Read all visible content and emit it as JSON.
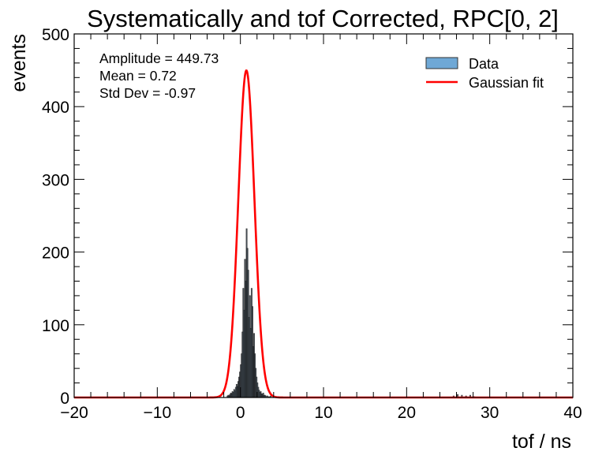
{
  "chart_data": {
    "type": "bar",
    "title": "Systematically and tof Corrected, RPC[0, 2]",
    "xlabel": "tof / ns",
    "ylabel": "events",
    "xlim": [
      -20,
      40
    ],
    "ylim": [
      0,
      500
    ],
    "x_ticks": [
      {
        "value": -20,
        "label": "−20"
      },
      {
        "value": -10,
        "label": "−10"
      },
      {
        "value": 0,
        "label": "0"
      },
      {
        "value": 10,
        "label": "10"
      },
      {
        "value": 20,
        "label": "20"
      },
      {
        "value": 30,
        "label": "30"
      },
      {
        "value": 40,
        "label": "40"
      }
    ],
    "y_ticks": [
      {
        "value": 0,
        "label": "0"
      },
      {
        "value": 100,
        "label": "100"
      },
      {
        "value": 200,
        "label": "200"
      },
      {
        "value": 300,
        "label": "300"
      },
      {
        "value": 400,
        "label": "400"
      },
      {
        "value": 500,
        "label": "500"
      }
    ],
    "grid": false,
    "legend_position": "top-right",
    "stats": {
      "amplitude": "Amplitude = 449.73",
      "mean": "Mean = 0.72",
      "std": "Std Dev = -0.97"
    },
    "series": [
      {
        "name": "Data",
        "kind": "histogram",
        "color": "#6fa8d6",
        "edge_color": "#1a1a1a",
        "bin_width": 0.1,
        "bins": [
          {
            "x": -1.6,
            "y": 2
          },
          {
            "x": -1.5,
            "y": 3
          },
          {
            "x": -1.4,
            "y": 2
          },
          {
            "x": -1.3,
            "y": 4
          },
          {
            "x": -1.2,
            "y": 6
          },
          {
            "x": -1.1,
            "y": 5
          },
          {
            "x": -1.0,
            "y": 8
          },
          {
            "x": -0.9,
            "y": 7
          },
          {
            "x": -0.8,
            "y": 11
          },
          {
            "x": -0.7,
            "y": 9
          },
          {
            "x": -0.6,
            "y": 14
          },
          {
            "x": -0.5,
            "y": 18
          },
          {
            "x": -0.4,
            "y": 15
          },
          {
            "x": -0.3,
            "y": 22
          },
          {
            "x": -0.2,
            "y": 28
          },
          {
            "x": -0.1,
            "y": 35
          },
          {
            "x": 0.0,
            "y": 45
          },
          {
            "x": 0.1,
            "y": 60
          },
          {
            "x": 0.2,
            "y": 90
          },
          {
            "x": 0.3,
            "y": 150
          },
          {
            "x": 0.4,
            "y": 120
          },
          {
            "x": 0.5,
            "y": 190
          },
          {
            "x": 0.6,
            "y": 160
          },
          {
            "x": 0.7,
            "y": 232
          },
          {
            "x": 0.8,
            "y": 205
          },
          {
            "x": 0.9,
            "y": 175
          },
          {
            "x": 1.0,
            "y": 110
          },
          {
            "x": 1.1,
            "y": 140
          },
          {
            "x": 1.2,
            "y": 95
          },
          {
            "x": 1.3,
            "y": 150
          },
          {
            "x": 1.4,
            "y": 125
          },
          {
            "x": 1.5,
            "y": 70
          },
          {
            "x": 1.6,
            "y": 88
          },
          {
            "x": 1.7,
            "y": 60
          },
          {
            "x": 1.8,
            "y": 40
          },
          {
            "x": 1.9,
            "y": 28
          },
          {
            "x": 2.0,
            "y": 20
          },
          {
            "x": 2.1,
            "y": 14
          },
          {
            "x": 2.2,
            "y": 10
          },
          {
            "x": 2.3,
            "y": 7
          },
          {
            "x": 2.4,
            "y": 8
          },
          {
            "x": 2.5,
            "y": 5
          },
          {
            "x": 2.6,
            "y": 4
          },
          {
            "x": 2.7,
            "y": 6
          },
          {
            "x": 2.8,
            "y": 3
          },
          {
            "x": 2.9,
            "y": 3
          },
          {
            "x": 3.0,
            "y": 2
          },
          {
            "x": 3.2,
            "y": 2
          },
          {
            "x": 3.4,
            "y": 1
          },
          {
            "x": 3.6,
            "y": 2
          },
          {
            "x": 4.0,
            "y": 1
          },
          {
            "x": 4.5,
            "y": 1
          },
          {
            "x": 25.6,
            "y": 2
          },
          {
            "x": 26.1,
            "y": 4
          },
          {
            "x": 26.6,
            "y": 3
          },
          {
            "x": 27.1,
            "y": 2
          },
          {
            "x": 27.6,
            "y": 3
          },
          {
            "x": 28.1,
            "y": 1
          }
        ]
      },
      {
        "name": "Gaussian fit",
        "kind": "gaussian",
        "color": "#ff0000",
        "amplitude": 449.73,
        "mean": 0.72,
        "sigma": 0.97
      }
    ]
  }
}
